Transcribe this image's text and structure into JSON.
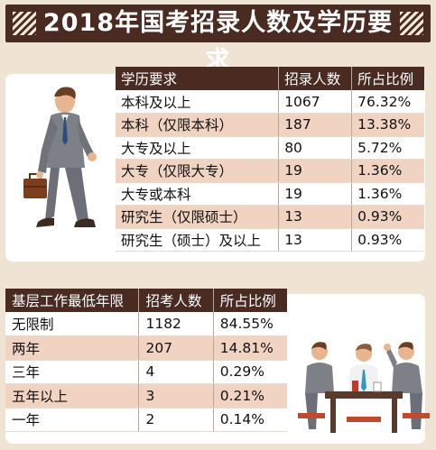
{
  "title": "2018年国考招录人数及学历要求",
  "education_table": {
    "headers": [
      "学历要求",
      "招录人数",
      "所占比例"
    ],
    "rows": [
      [
        "本科及以上",
        "1067",
        "76.32%"
      ],
      [
        "本科（仅限本科）",
        "187",
        "13.38%"
      ],
      [
        "大专及以上",
        "80",
        "5.72%"
      ],
      [
        "大专（仅限大专）",
        "19",
        "1.36%"
      ],
      [
        "大专或本科",
        "19",
        "1.36%"
      ],
      [
        "研究生（仅限硕士）",
        "13",
        "0.93%"
      ],
      [
        "研究生（硕士）及以上",
        "13",
        "0.93%"
      ]
    ]
  },
  "experience_table": {
    "headers": [
      "基层工作最低年限",
      "招考人数",
      "所占比例"
    ],
    "rows": [
      [
        "无限制",
        "1182",
        "84.55%"
      ],
      [
        "两年",
        "207",
        "14.81%"
      ],
      [
        "三年",
        "4",
        "0.29%"
      ],
      [
        "五年以上",
        "3",
        "0.21%"
      ],
      [
        "一年",
        "2",
        "0.14%"
      ]
    ]
  },
  "colors": {
    "header_bg": "#4a2b22",
    "alt_row": "#f1d3c2",
    "page_bg": "#efe3d3"
  }
}
